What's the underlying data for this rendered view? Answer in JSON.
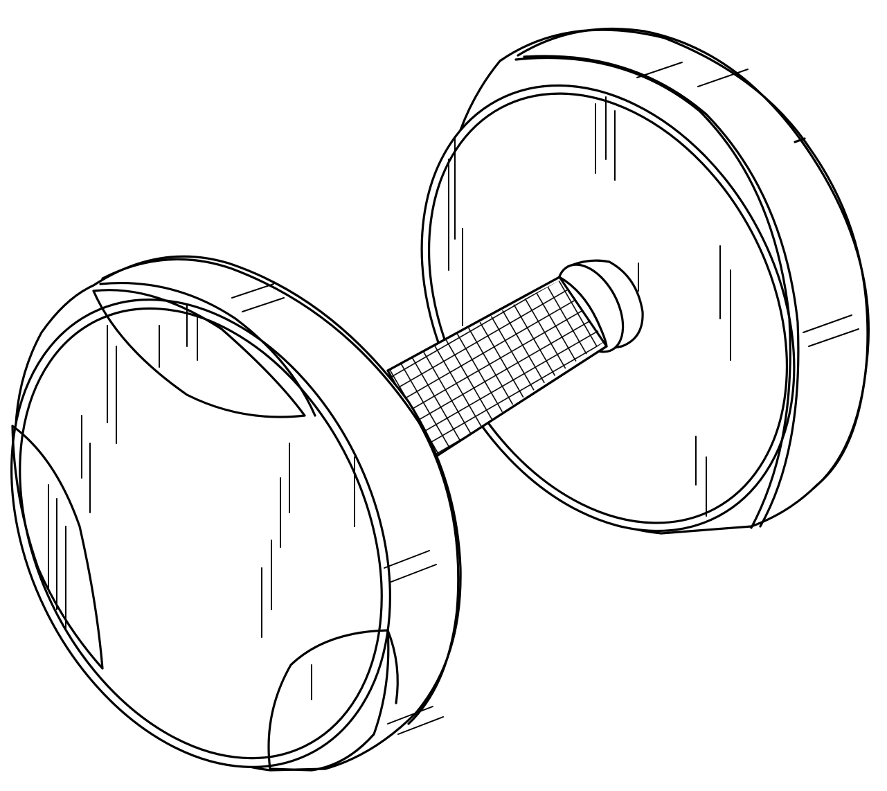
{
  "figure": {
    "subject": "dumbbell",
    "style": "patent line drawing",
    "line_color": "#000000",
    "background_color": "#ffffff",
    "parts": [
      "left-weight-plate",
      "right-weight-plate",
      "knurled-handle"
    ]
  }
}
